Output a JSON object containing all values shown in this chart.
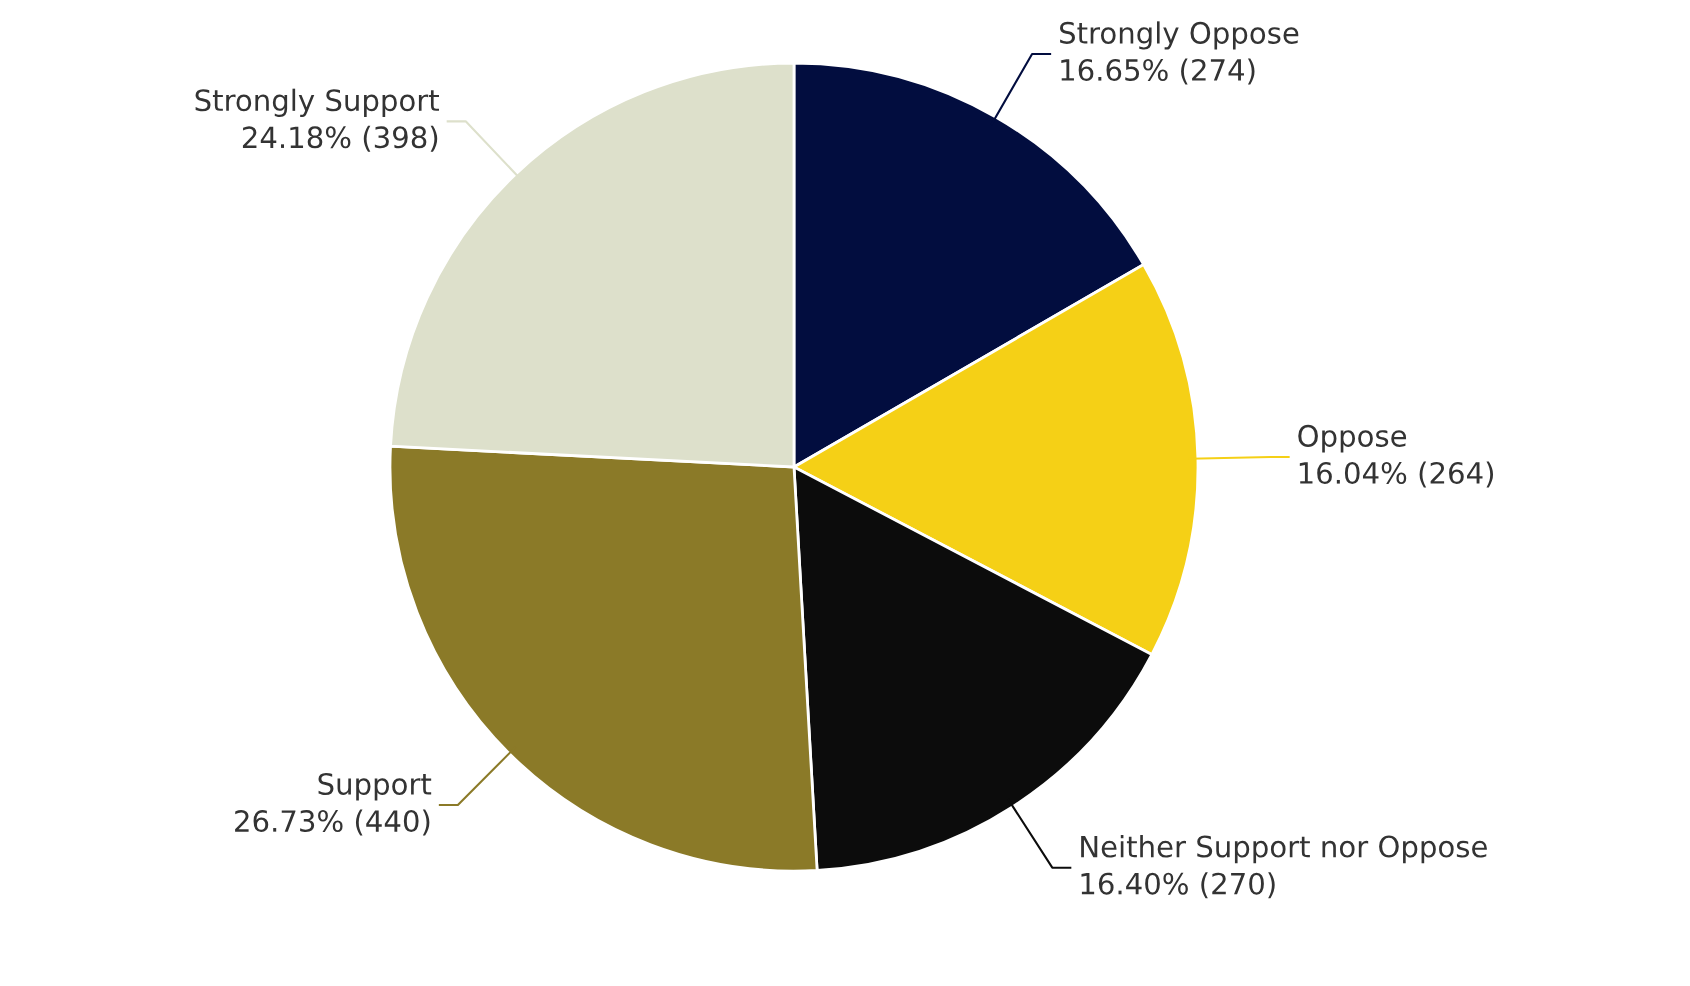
{
  "chart_data": {
    "type": "pie",
    "categories": [
      "Strongly Oppose",
      "Oppose",
      "Neither Support nor Oppose",
      "Support",
      "Strongly Support"
    ],
    "values": [
      274,
      264,
      270,
      440,
      398
    ],
    "value_labels": [
      "16.65% (274)",
      "16.04% (264)",
      "16.40% (270)",
      "26.73% (440)",
      "24.18% (398)"
    ],
    "colors": [
      "#020d3f",
      "#f5d016",
      "#0c0c0c",
      "#8b7a28",
      "#dde0cb"
    ],
    "legend": false
  }
}
